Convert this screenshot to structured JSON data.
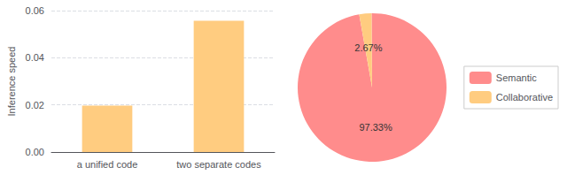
{
  "chart_data": [
    {
      "type": "bar",
      "categories": [
        "a unified code",
        "two separate codes"
      ],
      "values": [
        0.0197,
        0.0557
      ],
      "color": "#FFCC80",
      "ylabel": "Inference speed",
      "ylim": [
        0,
        0.06
      ],
      "yticks": [
        {
          "value": 0,
          "label": "0.00"
        },
        0.02,
        0.04,
        0.06
      ],
      "grid": true
    },
    {
      "type": "pie",
      "categories": [
        "Semantic",
        "Collaborative"
      ],
      "values": [
        97.33,
        2.67
      ],
      "value_labels": [
        "97.33%",
        "2.67%"
      ],
      "colors": [
        "#FF8C8C",
        "#FFCC80"
      ],
      "legend": "right"
    }
  ]
}
